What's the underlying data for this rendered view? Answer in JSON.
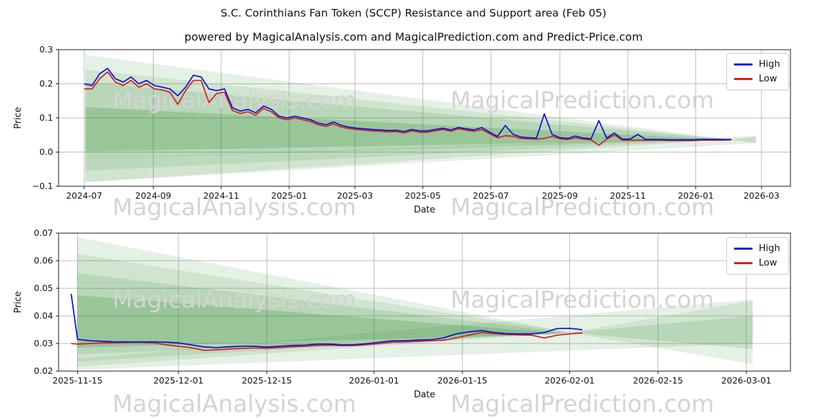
{
  "title": "S.C. Corinthians Fan Token (SCCP) Resistance and Support area (Feb 05)",
  "subtitle": "powered by MagicalAnalysis.com and MagicalPrediction.com and Predict-Price.com",
  "watermark": {
    "left_text": "MagicalAnalysis.com",
    "right_text": "MagicalPrediction.com"
  },
  "colors": {
    "high_line": "#1212d6",
    "low_line": "#d62020",
    "band_green": "#2e8b2e",
    "grid": "#bbbbbb",
    "spine": "#1a1a1a",
    "watermark": "#d4d4d4"
  },
  "legend": {
    "high_label": "High",
    "low_label": "Low"
  },
  "chart_data": [
    {
      "type": "line",
      "title": "S.C. Corinthians Fan Token (SCCP) Resistance and Support area (Feb 05)",
      "xlabel": "Date",
      "ylabel": "Price",
      "grid": true,
      "legend_position": "top-right",
      "x_range": [
        "2024-06-08",
        "2026-03-27"
      ],
      "y_range": [
        -0.1,
        0.3
      ],
      "x_ticks": [
        {
          "date": "2024-07-01",
          "label": "2024-07"
        },
        {
          "date": "2024-09-01",
          "label": "2024-09"
        },
        {
          "date": "2024-11-01",
          "label": "2024-11"
        },
        {
          "date": "2025-01-01",
          "label": "2025-01"
        },
        {
          "date": "2025-03-01",
          "label": "2025-03"
        },
        {
          "date": "2025-05-01",
          "label": "2025-05"
        },
        {
          "date": "2025-07-01",
          "label": "2025-07"
        },
        {
          "date": "2025-09-01",
          "label": "2025-09"
        },
        {
          "date": "2025-11-01",
          "label": "2025-11"
        },
        {
          "date": "2026-01-01",
          "label": "2026-01"
        },
        {
          "date": "2026-03-01",
          "label": "2026-03"
        }
      ],
      "y_ticks": [
        {
          "value": 0.3,
          "label": "0.3"
        },
        {
          "value": 0.2,
          "label": "0.2"
        },
        {
          "value": 0.1,
          "label": "0.1"
        },
        {
          "value": 0.0,
          "label": "0.0"
        },
        {
          "value": -0.1,
          "label": "−0.1"
        }
      ],
      "x": [
        "2024-07-01",
        "2024-07-08",
        "2024-07-15",
        "2024-07-22",
        "2024-07-29",
        "2024-08-05",
        "2024-08-12",
        "2024-08-19",
        "2024-08-26",
        "2024-09-02",
        "2024-09-09",
        "2024-09-16",
        "2024-09-23",
        "2024-09-30",
        "2024-10-07",
        "2024-10-14",
        "2024-10-21",
        "2024-10-28",
        "2024-11-04",
        "2024-11-11",
        "2024-11-18",
        "2024-11-25",
        "2024-12-02",
        "2024-12-09",
        "2024-12-16",
        "2024-12-23",
        "2024-12-30",
        "2025-01-06",
        "2025-01-13",
        "2025-01-20",
        "2025-01-27",
        "2025-02-03",
        "2025-02-10",
        "2025-02-17",
        "2025-02-24",
        "2025-03-03",
        "2025-03-10",
        "2025-03-17",
        "2025-03-24",
        "2025-03-31",
        "2025-04-07",
        "2025-04-14",
        "2025-04-21",
        "2025-04-28",
        "2025-05-05",
        "2025-05-12",
        "2025-05-19",
        "2025-05-26",
        "2025-06-02",
        "2025-06-09",
        "2025-06-16",
        "2025-06-23",
        "2025-06-30",
        "2025-07-07",
        "2025-07-14",
        "2025-07-21",
        "2025-07-28",
        "2025-08-04",
        "2025-08-11",
        "2025-08-18",
        "2025-08-25",
        "2025-09-01",
        "2025-09-08",
        "2025-09-15",
        "2025-09-22",
        "2025-09-29",
        "2025-10-06",
        "2025-10-13",
        "2025-10-20",
        "2025-10-27",
        "2025-11-03",
        "2025-11-10",
        "2025-11-17",
        "2025-11-24",
        "2025-12-01",
        "2025-12-08",
        "2025-12-15",
        "2025-12-22",
        "2025-12-29",
        "2026-01-05",
        "2026-01-12",
        "2026-01-19",
        "2026-01-26",
        "2026-02-02"
      ],
      "series": [
        {
          "name": "High",
          "color": "#1212d6",
          "values": [
            0.2,
            0.195,
            0.23,
            0.245,
            0.215,
            0.205,
            0.22,
            0.2,
            0.21,
            0.195,
            0.19,
            0.185,
            0.165,
            0.19,
            0.225,
            0.22,
            0.185,
            0.18,
            0.185,
            0.13,
            0.12,
            0.125,
            0.115,
            0.135,
            0.125,
            0.105,
            0.1,
            0.105,
            0.1,
            0.095,
            0.085,
            0.08,
            0.088,
            0.078,
            0.073,
            0.07,
            0.068,
            0.066,
            0.065,
            0.063,
            0.064,
            0.06,
            0.066,
            0.062,
            0.062,
            0.066,
            0.07,
            0.065,
            0.072,
            0.068,
            0.065,
            0.072,
            0.058,
            0.046,
            0.078,
            0.052,
            0.044,
            0.042,
            0.041,
            0.112,
            0.052,
            0.042,
            0.04,
            0.047,
            0.041,
            0.039,
            0.092,
            0.041,
            0.056,
            0.038,
            0.038,
            0.052,
            0.037,
            0.037,
            0.037,
            0.036,
            0.036,
            0.036,
            0.036,
            0.037,
            0.037,
            0.037,
            0.037,
            0.037
          ]
        },
        {
          "name": "Low",
          "color": "#d62020",
          "values": [
            0.185,
            0.185,
            0.215,
            0.235,
            0.205,
            0.195,
            0.21,
            0.19,
            0.2,
            0.185,
            0.182,
            0.175,
            0.14,
            0.18,
            0.21,
            0.21,
            0.145,
            0.172,
            0.175,
            0.122,
            0.113,
            0.118,
            0.108,
            0.128,
            0.118,
            0.1,
            0.095,
            0.1,
            0.095,
            0.09,
            0.08,
            0.075,
            0.082,
            0.073,
            0.069,
            0.066,
            0.064,
            0.062,
            0.061,
            0.059,
            0.06,
            0.056,
            0.062,
            0.058,
            0.058,
            0.062,
            0.066,
            0.061,
            0.068,
            0.064,
            0.061,
            0.066,
            0.054,
            0.042,
            0.048,
            0.046,
            0.04,
            0.039,
            0.038,
            0.04,
            0.046,
            0.039,
            0.037,
            0.042,
            0.038,
            0.036,
            0.02,
            0.038,
            0.05,
            0.035,
            0.035,
            0.035,
            0.035,
            0.035,
            0.035,
            0.034,
            0.034,
            0.034,
            0.034,
            0.035,
            0.035,
            0.035,
            0.035,
            0.036
          ]
        }
      ],
      "bands": [
        {
          "name": "resistance-support-fan-outer",
          "opacity": 0.12,
          "points": [
            [
              "2024-07-02",
              0.285
            ],
            [
              "2026-01-30",
              0.037
            ],
            [
              "2024-07-02",
              -0.088
            ]
          ]
        },
        {
          "name": "resistance-support-fan-2",
          "opacity": 0.12,
          "points": [
            [
              "2024-07-02",
              0.242
            ],
            [
              "2026-01-30",
              0.037
            ],
            [
              "2024-07-02",
              -0.055
            ]
          ]
        },
        {
          "name": "resistance-support-fan-3",
          "opacity": 0.15,
          "points": [
            [
              "2024-07-02",
              0.205
            ],
            [
              "2026-01-30",
              0.0365
            ],
            [
              "2024-07-02",
              -0.02
            ]
          ]
        },
        {
          "name": "resistance-support-core",
          "opacity": 0.22,
          "points": [
            [
              "2024-07-02",
              0.132
            ],
            [
              "2026-01-30",
              0.036
            ],
            [
              "2024-07-02",
              0.002
            ]
          ]
        },
        {
          "name": "rising-support-band",
          "opacity": 0.12,
          "points": [
            [
              "2024-07-02",
              -0.02
            ],
            [
              "2026-02-24",
              0.047
            ],
            [
              "2026-02-24",
              0.026
            ],
            [
              "2024-07-02",
              -0.088
            ]
          ]
        },
        {
          "name": "right-tip-band",
          "opacity": 0.18,
          "points": [
            [
              "2026-01-30",
              0.036
            ],
            [
              "2026-02-24",
              0.046
            ],
            [
              "2026-02-24",
              0.027
            ]
          ]
        }
      ]
    },
    {
      "type": "line",
      "title": "",
      "xlabel": "Date",
      "ylabel": "Price",
      "grid": true,
      "legend_position": "top-right",
      "x_range": [
        "2025-11-12",
        "2026-03-08"
      ],
      "y_range": [
        0.02,
        0.07
      ],
      "x_ticks": [
        {
          "date": "2025-11-15",
          "label": "2025-11-15"
        },
        {
          "date": "2025-12-01",
          "label": "2025-12-01"
        },
        {
          "date": "2025-12-15",
          "label": "2025-12-15"
        },
        {
          "date": "2026-01-01",
          "label": "2026-01-01"
        },
        {
          "date": "2026-01-15",
          "label": "2026-01-15"
        },
        {
          "date": "2026-02-01",
          "label": "2026-02-01"
        },
        {
          "date": "2026-02-15",
          "label": "2026-02-15"
        },
        {
          "date": "2026-03-01",
          "label": "2026-03-01"
        }
      ],
      "y_ticks": [
        {
          "value": 0.07,
          "label": "0.07"
        },
        {
          "value": 0.06,
          "label": "0.06"
        },
        {
          "value": 0.05,
          "label": "0.05"
        },
        {
          "value": 0.04,
          "label": "0.04"
        },
        {
          "value": 0.03,
          "label": "0.03"
        },
        {
          "value": 0.02,
          "label": "0.02"
        }
      ],
      "x": [
        "2025-11-14",
        "2025-11-15",
        "2025-11-17",
        "2025-11-19",
        "2025-11-21",
        "2025-11-23",
        "2025-11-25",
        "2025-11-27",
        "2025-11-29",
        "2025-12-01",
        "2025-12-03",
        "2025-12-05",
        "2025-12-07",
        "2025-12-09",
        "2025-12-11",
        "2025-12-13",
        "2025-12-15",
        "2025-12-17",
        "2025-12-19",
        "2025-12-21",
        "2025-12-23",
        "2025-12-25",
        "2025-12-27",
        "2025-12-29",
        "2025-12-31",
        "2026-01-02",
        "2026-01-04",
        "2026-01-06",
        "2026-01-08",
        "2026-01-10",
        "2026-01-12",
        "2026-01-14",
        "2026-01-16",
        "2026-01-18",
        "2026-01-20",
        "2026-01-22",
        "2026-01-24",
        "2026-01-26",
        "2026-01-28",
        "2026-01-30",
        "2026-02-01",
        "2026-02-03"
      ],
      "series": [
        {
          "name": "High",
          "color": "#1212d6",
          "values": [
            0.048,
            0.0315,
            0.031,
            0.0308,
            0.0306,
            0.0306,
            0.0306,
            0.0306,
            0.0305,
            0.0302,
            0.0295,
            0.0288,
            0.0285,
            0.0288,
            0.029,
            0.029,
            0.0287,
            0.029,
            0.0293,
            0.0294,
            0.0298,
            0.0298,
            0.0295,
            0.0296,
            0.03,
            0.0305,
            0.031,
            0.031,
            0.0313,
            0.0314,
            0.032,
            0.0335,
            0.0342,
            0.0347,
            0.034,
            0.0336,
            0.0335,
            0.0335,
            0.034,
            0.0354,
            0.0355,
            0.035
          ]
        },
        {
          "name": "Low",
          "color": "#d62020",
          "values": [
            0.03,
            0.0298,
            0.03,
            0.0302,
            0.0303,
            0.0304,
            0.0304,
            0.0303,
            0.0295,
            0.029,
            0.0285,
            0.0275,
            0.0277,
            0.028,
            0.0282,
            0.0284,
            0.0283,
            0.0285,
            0.0288,
            0.029,
            0.0293,
            0.0294,
            0.0292,
            0.0293,
            0.0296,
            0.03,
            0.0305,
            0.0306,
            0.0308,
            0.031,
            0.0312,
            0.032,
            0.033,
            0.034,
            0.0336,
            0.0333,
            0.0331,
            0.033,
            0.032,
            0.033,
            0.0335,
            0.0338
          ]
        }
      ],
      "bands": [
        {
          "name": "resistance-support-fan-outer",
          "opacity": 0.12,
          "points": [
            [
              "2025-11-15",
              0.0685
            ],
            [
              "2026-02-01",
              0.034
            ],
            [
              "2025-11-15",
              0.0215
            ]
          ]
        },
        {
          "name": "resistance-support-fan-2",
          "opacity": 0.12,
          "points": [
            [
              "2025-11-15",
              0.0625
            ],
            [
              "2026-02-01",
              0.034
            ],
            [
              "2025-11-15",
              0.0235
            ]
          ]
        },
        {
          "name": "resistance-support-fan-3",
          "opacity": 0.15,
          "points": [
            [
              "2025-11-15",
              0.0555
            ],
            [
              "2026-02-01",
              0.0338
            ],
            [
              "2025-11-15",
              0.026
            ]
          ]
        },
        {
          "name": "resistance-support-core",
          "opacity": 0.22,
          "points": [
            [
              "2025-11-15",
              0.0475
            ],
            [
              "2026-02-01",
              0.0335
            ],
            [
              "2025-11-15",
              0.0285
            ]
          ]
        },
        {
          "name": "rising-support-band",
          "opacity": 0.12,
          "points": [
            [
              "2025-11-15",
              0.0245
            ],
            [
              "2026-03-02",
              0.046
            ],
            [
              "2026-03-02",
              0.03
            ],
            [
              "2025-11-15",
              0.0205
            ]
          ]
        },
        {
          "name": "right-expanding-fan",
          "opacity": 0.12,
          "points": [
            [
              "2026-02-01",
              0.034
            ],
            [
              "2026-03-02",
              0.0455
            ],
            [
              "2026-03-02",
              0.0225
            ]
          ]
        },
        {
          "name": "right-expanding-core",
          "opacity": 0.15,
          "points": [
            [
              "2026-02-01",
              0.034
            ],
            [
              "2026-03-02",
              0.04
            ],
            [
              "2026-03-02",
              0.028
            ]
          ]
        }
      ]
    }
  ]
}
